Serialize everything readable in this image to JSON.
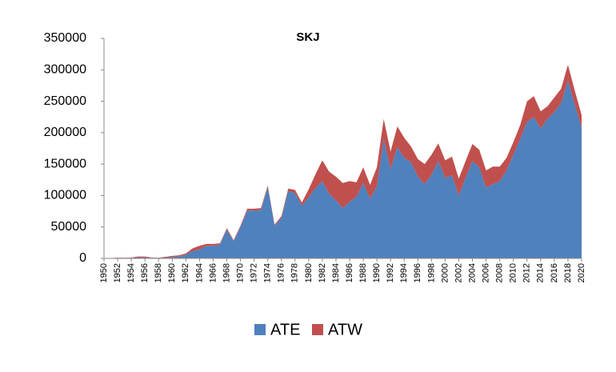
{
  "chart_data": {
    "type": "stacked-area",
    "title": "SKJ",
    "x": [
      1950,
      1951,
      1952,
      1953,
      1954,
      1955,
      1956,
      1957,
      1958,
      1959,
      1960,
      1961,
      1962,
      1963,
      1964,
      1965,
      1966,
      1967,
      1968,
      1969,
      1970,
      1971,
      1972,
      1973,
      1974,
      1975,
      1976,
      1977,
      1978,
      1979,
      1980,
      1981,
      1982,
      1983,
      1984,
      1985,
      1986,
      1987,
      1988,
      1989,
      1990,
      1991,
      1992,
      1993,
      1994,
      1995,
      1996,
      1997,
      1998,
      1999,
      2000,
      2001,
      2002,
      2003,
      2004,
      2005,
      2006,
      2007,
      2008,
      2009,
      2010,
      2011,
      2012,
      2013,
      2014,
      2015,
      2016,
      2017,
      2018,
      2019,
      2020
    ],
    "series": [
      {
        "name": "ATE",
        "color": "#4f81bd",
        "values": [
          500,
          500,
          800,
          800,
          1000,
          1500,
          1500,
          1000,
          500,
          1500,
          2000,
          3000,
          6000,
          12000,
          14000,
          20000,
          20000,
          22000,
          46000,
          27000,
          50000,
          76000,
          76000,
          77000,
          113000,
          52000,
          64000,
          107000,
          104000,
          84000,
          97000,
          112000,
          123000,
          103000,
          92000,
          80000,
          90000,
          98000,
          120000,
          95000,
          115000,
          190000,
          142000,
          177000,
          160000,
          153000,
          130000,
          118000,
          133000,
          155000,
          128000,
          132000,
          100000,
          128000,
          155000,
          145000,
          113000,
          118000,
          123000,
          140000,
          165000,
          190000,
          217000,
          225000,
          207000,
          222000,
          233000,
          247000,
          283000,
          245000,
          208000
        ]
      },
      {
        "name": "ATW",
        "color": "#c0504d",
        "values": [
          200,
          200,
          300,
          300,
          500,
          1500,
          1500,
          500,
          500,
          1000,
          2000,
          2000,
          2000,
          4000,
          6000,
          3000,
          3000,
          2000,
          2000,
          2000,
          2000,
          3000,
          3000,
          3000,
          3000,
          2000,
          3000,
          4000,
          5000,
          5000,
          13000,
          22000,
          33000,
          35000,
          38000,
          40000,
          33000,
          23000,
          25000,
          22000,
          30000,
          32000,
          28000,
          33000,
          32000,
          25000,
          28000,
          32000,
          32000,
          28000,
          28000,
          30000,
          27000,
          27000,
          27000,
          28000,
          27000,
          28000,
          23000,
          20000,
          20000,
          22000,
          33000,
          33000,
          27000,
          20000,
          23000,
          23000,
          25000,
          22000,
          20000
        ]
      }
    ],
    "xlim": [
      1950,
      2020
    ],
    "xticks": [
      1950,
      1952,
      1954,
      1956,
      1958,
      1960,
      1962,
      1964,
      1966,
      1968,
      1970,
      1972,
      1974,
      1976,
      1978,
      1980,
      1982,
      1984,
      1986,
      1988,
      1990,
      1992,
      1994,
      1996,
      1998,
      2000,
      2002,
      2004,
      2006,
      2008,
      2010,
      2012,
      2014,
      2016,
      2018,
      2020
    ],
    "ylim": [
      0,
      350000
    ],
    "yticks": [
      0,
      50000,
      100000,
      150000,
      200000,
      250000,
      300000,
      350000
    ],
    "grid": false,
    "legend": "bottom"
  }
}
